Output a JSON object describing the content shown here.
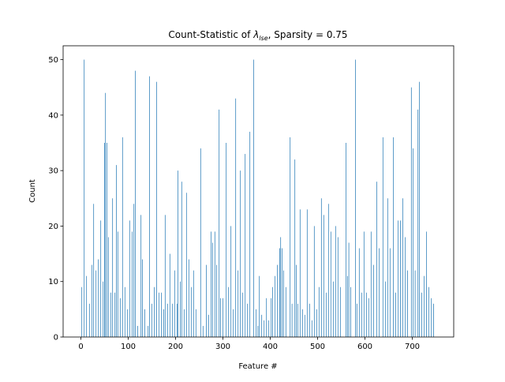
{
  "chart_data": {
    "type": "bar",
    "title": {
      "text": "Count-Statistic of ",
      "symbol": "λ",
      "subscript": "lse",
      "suffix": ", Sparsity = 0.75"
    },
    "xlabel": "Feature #",
    "ylabel": "Count",
    "color": "#1f77b4",
    "xlim": [
      -37.5,
      787.5
    ],
    "ylim": [
      0,
      52.5
    ],
    "xticks": [
      0,
      100,
      200,
      300,
      400,
      500,
      600,
      700
    ],
    "yticks": [
      0,
      10,
      20,
      30,
      40,
      50
    ],
    "x": [
      2,
      7,
      12,
      18,
      23,
      27,
      32,
      37,
      42,
      47,
      50,
      52,
      55,
      58,
      63,
      67,
      72,
      75,
      78,
      83,
      88,
      93,
      98,
      103,
      108,
      112,
      115,
      120,
      127,
      130,
      135,
      142,
      145,
      150,
      155,
      160,
      165,
      170,
      175,
      178,
      183,
      188,
      193,
      198,
      203,
      205,
      210,
      213,
      218,
      223,
      228,
      233,
      238,
      243,
      253,
      258,
      265,
      270,
      275,
      278,
      283,
      287,
      292,
      295,
      300,
      307,
      312,
      317,
      322,
      327,
      332,
      337,
      342,
      347,
      352,
      357,
      365,
      370,
      374,
      377,
      382,
      387,
      392,
      397,
      402,
      405,
      410,
      415,
      420,
      422,
      425,
      428,
      433,
      442,
      446,
      452,
      455,
      458,
      463,
      468,
      473,
      478,
      483,
      488,
      493,
      498,
      503,
      508,
      513,
      518,
      523,
      528,
      533,
      538,
      543,
      548,
      560,
      563,
      566,
      570,
      580,
      583,
      588,
      593,
      598,
      603,
      608,
      613,
      618,
      625,
      630,
      638,
      643,
      648,
      653,
      660,
      665,
      670,
      675,
      680,
      685,
      690,
      698,
      702,
      706,
      712,
      715,
      720,
      725,
      730,
      735,
      740,
      745
    ],
    "values": [
      9,
      50,
      11,
      6,
      13,
      24,
      12,
      14,
      21,
      10,
      35,
      44,
      35,
      18,
      8,
      25,
      8,
      31,
      19,
      7,
      36,
      9,
      5,
      21,
      19,
      24,
      48,
      2,
      22,
      14,
      5,
      2,
      47,
      6,
      9,
      46,
      8,
      8,
      5,
      22,
      6,
      15,
      6,
      12,
      6,
      30,
      10,
      28,
      5,
      26,
      14,
      9,
      12,
      5,
      34,
      2,
      13,
      4,
      19,
      17,
      19,
      13,
      41,
      7,
      7,
      35,
      9,
      20,
      5,
      43,
      12,
      30,
      8,
      33,
      6,
      37,
      50,
      5,
      2,
      11,
      4,
      3,
      7,
      3,
      7,
      9,
      11,
      13,
      16,
      18,
      16,
      12,
      9,
      36,
      6,
      32,
      13,
      6,
      23,
      5,
      4,
      23,
      6,
      3,
      20,
      5,
      9,
      25,
      22,
      8,
      24,
      19,
      10,
      20,
      18,
      9,
      35,
      11,
      17,
      9,
      50,
      6,
      16,
      8,
      19,
      8,
      7,
      19,
      13,
      28,
      16,
      36,
      10,
      25,
      16,
      36,
      8,
      21,
      21,
      25,
      18,
      12,
      45,
      34,
      12,
      41,
      46,
      8,
      11,
      19,
      9,
      7,
      6
    ]
  }
}
